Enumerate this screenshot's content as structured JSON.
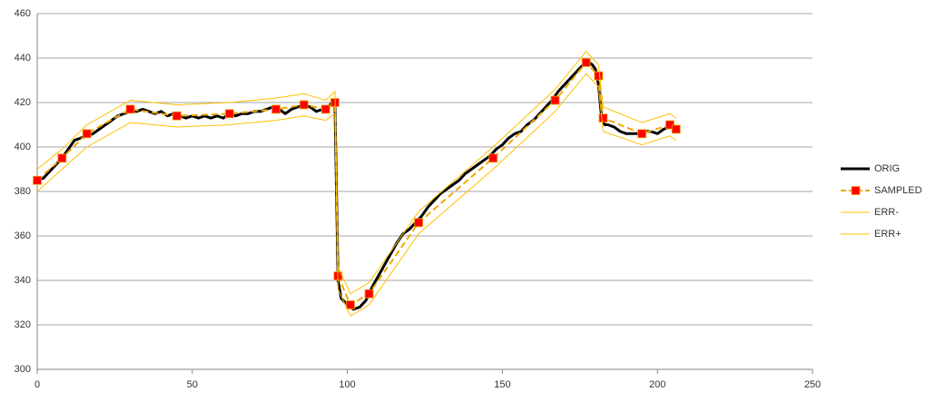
{
  "chart_data": {
    "type": "line",
    "xlim": [
      0,
      250
    ],
    "xticks": [
      0,
      50,
      100,
      150,
      200,
      250
    ],
    "ylim": [
      300,
      460
    ],
    "yticks": [
      300,
      320,
      340,
      360,
      380,
      400,
      420,
      440,
      460
    ],
    "grid": true,
    "legend": "right",
    "series": [
      {
        "name": "ORIG",
        "color": "#000000",
        "width": 3,
        "x": [
          0,
          2,
          4,
          6,
          8,
          10,
          12,
          14,
          16,
          18,
          20,
          22,
          24,
          26,
          28,
          30,
          32,
          34,
          36,
          38,
          40,
          42,
          44,
          46,
          48,
          50,
          52,
          54,
          56,
          58,
          60,
          62,
          64,
          66,
          68,
          70,
          72,
          74,
          76,
          78,
          80,
          82,
          84,
          86,
          88,
          90,
          92,
          94,
          95,
          96,
          97,
          98,
          100,
          102,
          104,
          106,
          108,
          110,
          112,
          114,
          116,
          118,
          120,
          122,
          124,
          126,
          128,
          130,
          132,
          134,
          136,
          138,
          140,
          142,
          144,
          146,
          148,
          150,
          152,
          154,
          156,
          158,
          160,
          162,
          164,
          166,
          168,
          170,
          172,
          174,
          176,
          177,
          178,
          179,
          180,
          181,
          182,
          183,
          184,
          186,
          188,
          190,
          192,
          194,
          196,
          198,
          200,
          202,
          204
        ],
        "values": [
          385,
          386,
          389,
          392,
          395,
          399,
          403,
          404,
          405,
          406,
          408,
          410,
          412,
          414,
          415,
          416,
          416,
          417,
          416,
          415,
          416,
          414,
          415,
          414,
          413,
          414,
          413,
          414,
          413,
          414,
          413,
          415,
          414,
          415,
          415,
          416,
          416,
          417,
          418,
          417,
          415,
          417,
          418,
          419,
          418,
          416,
          417,
          418,
          420,
          419,
          340,
          332,
          329,
          327,
          328,
          331,
          337,
          342,
          347,
          352,
          357,
          361,
          363,
          366,
          369,
          373,
          376,
          379,
          381,
          383,
          385,
          388,
          390,
          392,
          394,
          396,
          399,
          401,
          404,
          406,
          407,
          410,
          412,
          415,
          418,
          421,
          425,
          428,
          431,
          434,
          437,
          438,
          438,
          437,
          435,
          428,
          413,
          410,
          410,
          409,
          407,
          406,
          406,
          406,
          407,
          407,
          406,
          408,
          409
        ]
      },
      {
        "name": "SAMPLED",
        "color": "#f0a800",
        "width": 2,
        "dashed": true,
        "marker": "square",
        "marker_color": "#ff0000",
        "x": [
          0,
          8,
          16,
          30,
          45,
          62,
          77,
          86,
          93,
          96,
          97,
          101,
          107,
          123,
          147,
          167,
          177,
          181,
          182.5,
          195,
          204,
          206
        ],
        "values": [
          385,
          395,
          406,
          417,
          414,
          415,
          417,
          419,
          417,
          420,
          342,
          329,
          334,
          366,
          395,
          421,
          438,
          432,
          413,
          406,
          410,
          408
        ]
      },
      {
        "name": "ERR-",
        "color": "#ffc000",
        "width": 1,
        "x": [
          0,
          8,
          16,
          30,
          45,
          62,
          77,
          86,
          93,
          96,
          97,
          101,
          107,
          123,
          147,
          167,
          177,
          181,
          182.5,
          195,
          204,
          206
        ],
        "values": [
          380,
          390,
          400,
          411,
          409,
          410,
          412,
          414,
          412,
          415,
          336,
          324,
          329,
          361,
          390,
          416,
          433,
          427,
          407,
          401,
          405,
          403
        ]
      },
      {
        "name": "ERR+",
        "color": "#ffc000",
        "width": 1,
        "x": [
          0,
          8,
          16,
          30,
          45,
          62,
          77,
          86,
          93,
          96,
          97,
          101,
          107,
          123,
          147,
          167,
          177,
          181,
          182.5,
          195,
          204,
          206
        ],
        "values": [
          390,
          399,
          410,
          421,
          419,
          420,
          422,
          424,
          421,
          425,
          346,
          334,
          339,
          371,
          400,
          426,
          443,
          437,
          418,
          411,
          415,
          413
        ]
      }
    ]
  }
}
